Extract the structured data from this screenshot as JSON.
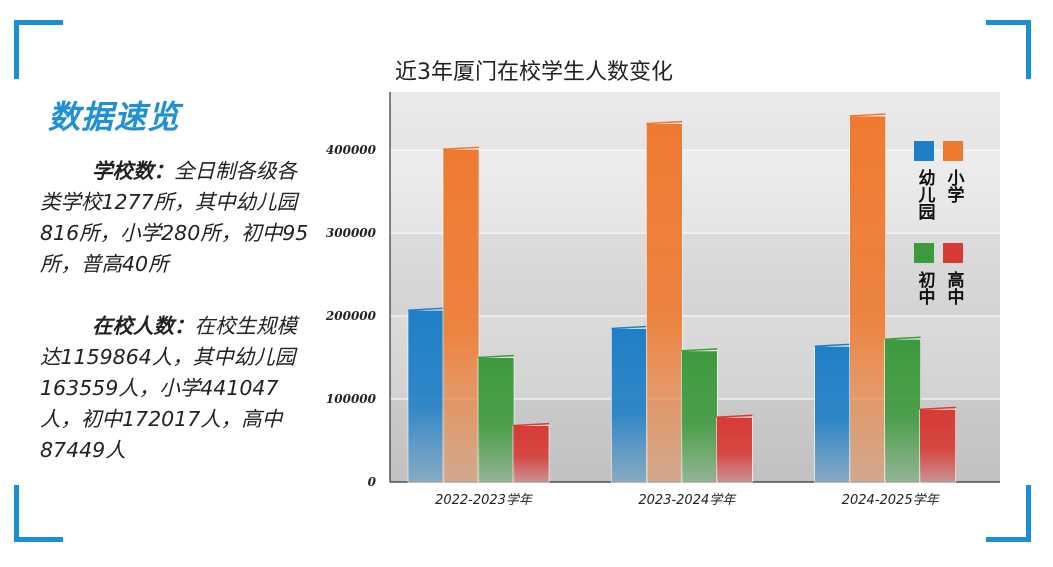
{
  "sidebar": {
    "title": "数据速览",
    "school_label": "学校数：",
    "school_text": "全日制各级各类学校1277所，其中幼儿园816所，小学280所，初中95所，普高40所",
    "student_label": "在校人数：",
    "student_text": "在校生规模达1159864人，其中幼儿园163559人，小学441047人，初中172017人，高中87449人"
  },
  "colors": {
    "frame_accent": "#1a8fd8",
    "kindergarten": "#1f7fc6",
    "primary": "#ee7a30",
    "junior": "#3e9a3e",
    "senior": "#d73a35"
  },
  "chart_data": {
    "type": "bar",
    "title": "近3年厦门在校学生人数变化",
    "xlabel": "",
    "ylabel": "",
    "categories": [
      "2022-2023学年",
      "2023-2024学年",
      "2024-2025学年"
    ],
    "series": [
      {
        "name": "幼儿园",
        "values": [
          207000,
          185000,
          163559
        ]
      },
      {
        "name": "小学",
        "values": [
          401000,
          432000,
          441047
        ]
      },
      {
        "name": "初中",
        "values": [
          150000,
          158000,
          172017
        ]
      },
      {
        "name": "高中",
        "values": [
          68000,
          78000,
          87449
        ]
      }
    ],
    "ylim": [
      0,
      470000
    ],
    "yticks": [
      0,
      100000,
      200000,
      300000,
      400000
    ],
    "ytick_labels": [
      "0",
      "100000",
      "200000",
      "300000",
      "400000"
    ],
    "legend_position": "top-right",
    "grid": true
  }
}
